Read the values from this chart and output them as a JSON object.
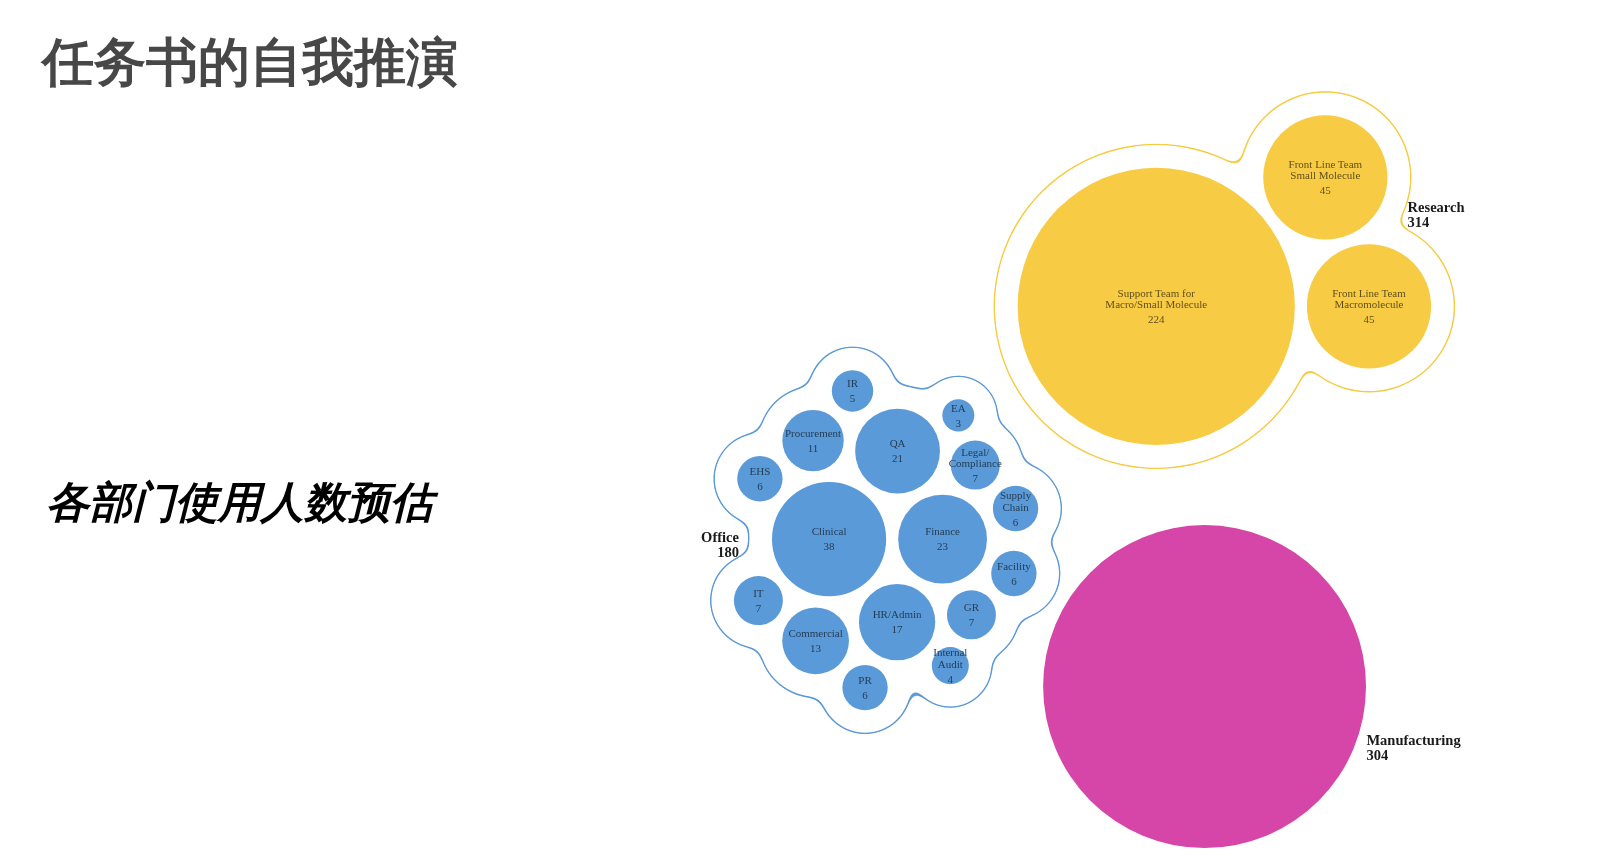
{
  "chart_data": {
    "type": "other",
    "title": "任务书的自我推演",
    "subtitle": "各部门使用人数预估",
    "categories": [
      "Clinical",
      "Finance",
      "QA",
      "HR/Admin",
      "Commercial",
      "Procurement",
      "GR",
      "Legal/\nCompliance",
      "IT",
      "EHS",
      "Facility",
      "Supply\nChain",
      "PR",
      "IR",
      "Internal\nAudit",
      "EA",
      "Support Team for\nMacro/Small Molecule",
      "Front Line Team\nMacromolecule",
      "Front Line Team\nSmall Molecule",
      "Manufacturing"
    ],
    "series": [
      {
        "name": "Office",
        "color": "#5b9ad8",
        "values": [
          38,
          23,
          21,
          17,
          13,
          11,
          7,
          7,
          7,
          6,
          6,
          6,
          6,
          5,
          4,
          3,
          null,
          null,
          null,
          null
        ],
        "value_labels": [
          "38",
          "23",
          "21",
          "17",
          "13",
          "11",
          "7",
          "7",
          "7",
          "6",
          "6",
          "6",
          "6",
          "5",
          "4",
          "3",
          null,
          null,
          null,
          null
        ]
      },
      {
        "name": "Research",
        "color": "#f7cb43",
        "values": [
          null,
          null,
          null,
          null,
          null,
          null,
          null,
          null,
          null,
          null,
          null,
          null,
          null,
          null,
          null,
          null,
          224,
          45,
          45,
          null
        ],
        "value_labels": [
          null,
          null,
          null,
          null,
          null,
          null,
          null,
          null,
          null,
          null,
          null,
          null,
          null,
          null,
          null,
          null,
          "224",
          "45",
          "45",
          null
        ]
      },
      {
        "color": "#d546a8",
        "values": [
          null,
          null,
          null,
          null,
          null,
          null,
          null,
          null,
          null,
          null,
          null,
          null,
          null,
          null,
          null,
          null,
          null,
          null,
          null,
          304
        ],
        "value_labels": [
          null,
          null,
          null,
          null,
          null,
          null,
          null,
          null,
          null,
          null,
          null,
          null,
          null,
          null,
          null,
          null,
          null,
          null,
          null,
          "304"
        ]
      }
    ],
    "totals": [
      "180",
      "314",
      null
    ]
  }
}
